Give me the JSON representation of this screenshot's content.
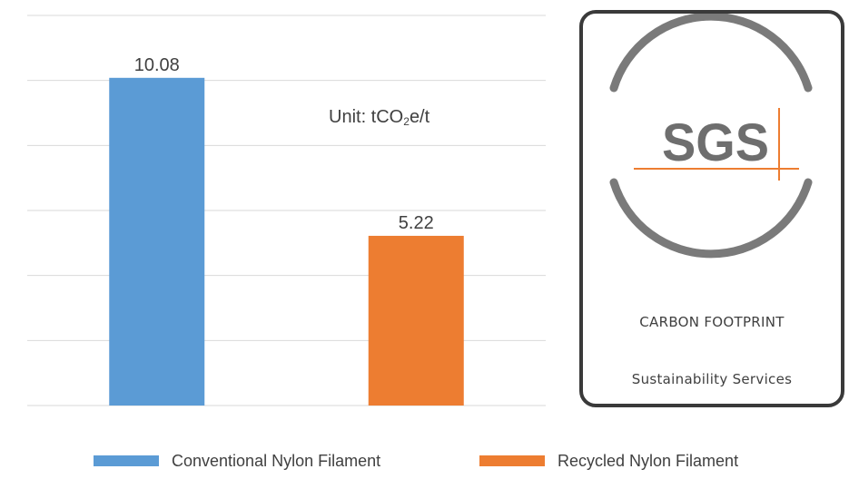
{
  "chart_data": {
    "type": "bar",
    "categories": [
      "Conventional Nylon Filament",
      "Recycled Nylon Filament"
    ],
    "values": [
      10.08,
      5.22
    ],
    "value_labels": [
      "10.08",
      "5.22"
    ],
    "colors": [
      "#5b9bd5",
      "#ed7d31"
    ],
    "unit_prefix": "Unit: tCO",
    "unit_subscript": "2",
    "unit_suffix": "e/t",
    "grid": true,
    "legend_position": "bottom"
  },
  "badge": {
    "logo": "SGS",
    "line1": "CARBON FOOTPRINT",
    "line2": "Sustainability Services",
    "ring_color": "#7a7a7a",
    "accent_color": "#ed7d31"
  }
}
